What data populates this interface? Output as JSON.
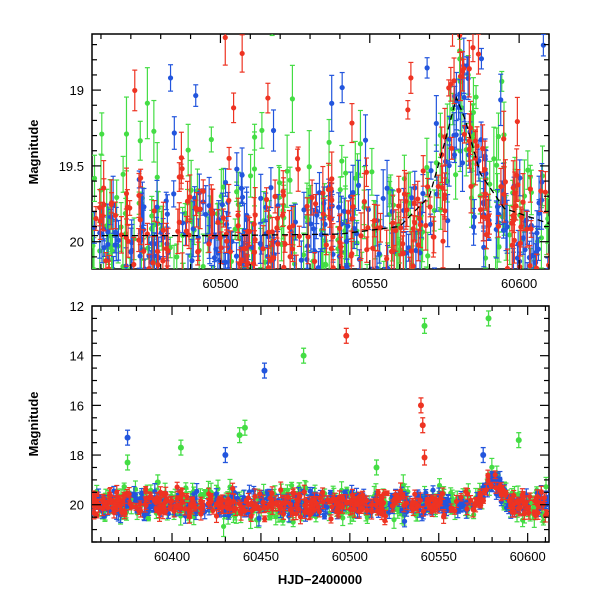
{
  "chart_data": [
    {
      "type": "scatter",
      "xlabel": "",
      "ylabel": "Magnitude",
      "xlim": [
        60457,
        60610
      ],
      "ylim": [
        20.18,
        18.63
      ],
      "y_inverted": true,
      "x_ticks": [
        60500,
        60550,
        60600
      ],
      "x_tick_labels": [
        "60500",
        "60550",
        "60600"
      ],
      "y_ticks": [
        19,
        19.5,
        20
      ],
      "y_tick_labels": [
        "19",
        "19.5",
        "20"
      ],
      "series": [
        {
          "color": "#44dd44",
          "marker": "dot-with-errorbar"
        },
        {
          "color": "#2255dd",
          "marker": "dot-with-errorbar"
        },
        {
          "color": "#ee3322",
          "marker": "dot-with-errorbar"
        }
      ],
      "model_curve": {
        "style": "dashed",
        "color": "#000000",
        "x": [
          60457,
          60500,
          60540,
          60560,
          60570,
          60575,
          60579,
          60582,
          60587,
          60595,
          60610
        ],
        "y": [
          19.96,
          19.96,
          19.95,
          19.9,
          19.7,
          19.35,
          19.05,
          19.2,
          19.55,
          19.78,
          19.88
        ]
      }
    },
    {
      "type": "scatter",
      "xlabel": "HJD−2400000",
      "ylabel": "Magnitude",
      "xlim": [
        60355,
        60612
      ],
      "ylim": [
        21.5,
        12
      ],
      "y_inverted": true,
      "x_ticks": [
        60400,
        60450,
        60500,
        60550,
        60600
      ],
      "x_tick_labels": [
        "60400",
        "60450",
        "60500",
        "60550",
        "60600"
      ],
      "y_ticks": [
        12,
        14,
        16,
        18,
        20
      ],
      "y_tick_labels": [
        "12",
        "14",
        "16",
        "18",
        "20"
      ],
      "series": [
        {
          "color": "#44dd44",
          "marker": "dot-with-errorbar",
          "outliers": [
            [
              60375,
              18.3
            ],
            [
              60392,
              19.1
            ],
            [
              60405,
              17.7
            ],
            [
              60438,
              17.2
            ],
            [
              60441,
              16.9
            ],
            [
              60474,
              14.0
            ],
            [
              60515,
              18.5
            ],
            [
              60542,
              12.8
            ],
            [
              60578,
              12.5
            ],
            [
              60595,
              17.4
            ]
          ]
        },
        {
          "color": "#2255dd",
          "marker": "dot-with-errorbar",
          "outliers": [
            [
              60375,
              17.3
            ],
            [
              60430,
              18.0
            ],
            [
              60452,
              14.6
            ],
            [
              60575,
              18.0
            ],
            [
              60581,
              19.0
            ]
          ]
        },
        {
          "color": "#ee3322",
          "marker": "dot-with-errorbar",
          "outliers": [
            [
              60498,
              13.2
            ],
            [
              60540,
              16.0
            ],
            [
              60541,
              16.8
            ],
            [
              60542,
              18.1
            ],
            [
              60477,
              20.3
            ]
          ]
        }
      ]
    }
  ]
}
